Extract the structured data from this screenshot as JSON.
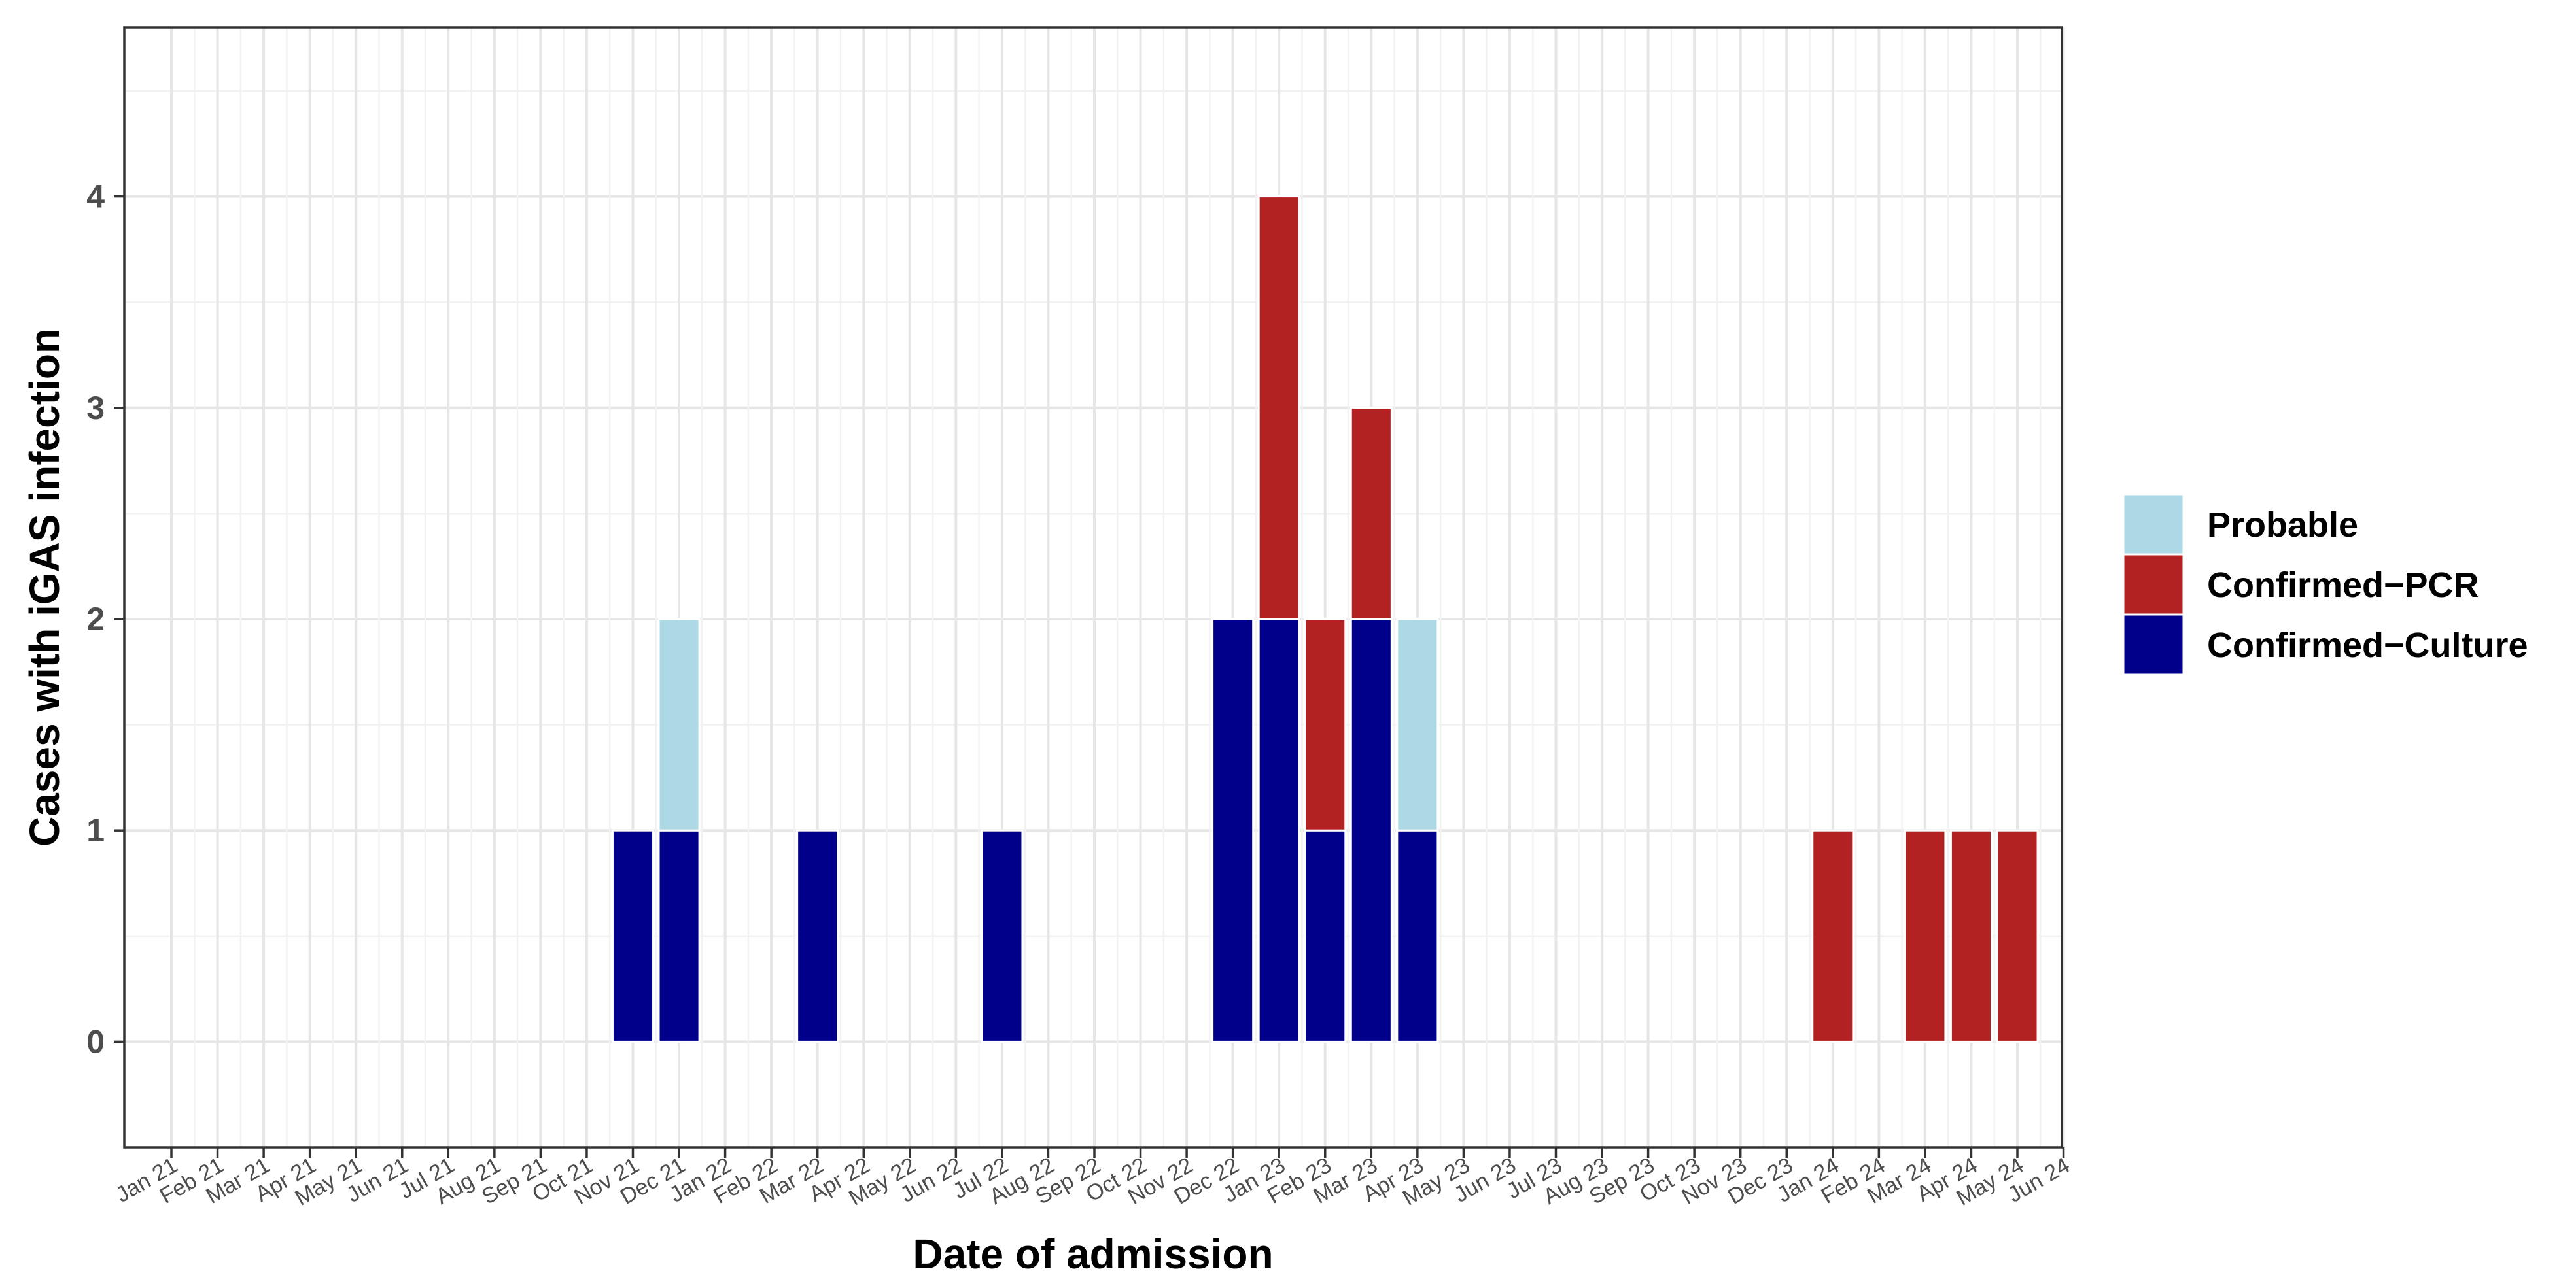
{
  "chart_data": {
    "type": "bar",
    "stacked": true,
    "title": "",
    "xlabel": "Date of admission",
    "ylabel": "Cases with iGAS infection",
    "ylim": [
      -0.5,
      4.8
    ],
    "yticks": [
      0,
      1,
      2,
      3,
      4
    ],
    "grid": true,
    "legend_position": "right",
    "categories": [
      "Jan 21",
      "Feb 21",
      "Mar 21",
      "Apr 21",
      "May 21",
      "Jun 21",
      "Jul 21",
      "Aug 21",
      "Sep 21",
      "Oct 21",
      "Nov 21",
      "Dec 21",
      "Jan 22",
      "Feb 22",
      "Mar 22",
      "Apr 22",
      "May 22",
      "Jun 22",
      "Jul 22",
      "Aug 22",
      "Sep 22",
      "Oct 22",
      "Nov 22",
      "Dec 22",
      "Jan 23",
      "Feb 23",
      "Mar 23",
      "Apr 23",
      "May 23",
      "Jun 23",
      "Jul 23",
      "Aug 23",
      "Sep 23",
      "Oct 23",
      "Nov 23",
      "Dec 23",
      "Jan 24",
      "Feb 24",
      "Mar 24",
      "Apr 24",
      "May 24",
      "Jun 24"
    ],
    "legend_order": [
      "Probable",
      "Confirmed−PCR",
      "Confirmed−Culture"
    ],
    "series": [
      {
        "name": "Confirmed−Culture",
        "color": "#00008B",
        "values": [
          0,
          0,
          0,
          0,
          0,
          0,
          0,
          0,
          0,
          0,
          1,
          1,
          0,
          0,
          1,
          0,
          0,
          0,
          1,
          0,
          0,
          0,
          0,
          2,
          2,
          1,
          2,
          1,
          0,
          0,
          0,
          0,
          0,
          0,
          0,
          0,
          0,
          0,
          0,
          0,
          0,
          0
        ]
      },
      {
        "name": "Confirmed−PCR",
        "color": "#B22222",
        "values": [
          0,
          0,
          0,
          0,
          0,
          0,
          0,
          0,
          0,
          0,
          0,
          0,
          0,
          0,
          0,
          0,
          0,
          0,
          0,
          0,
          0,
          0,
          0,
          0,
          2,
          1,
          1,
          0,
          0,
          0,
          0,
          0,
          0,
          0,
          0,
          0,
          1,
          0,
          1,
          1,
          1,
          0
        ]
      },
      {
        "name": "Probable",
        "color": "#ADD8E6",
        "values": [
          0,
          0,
          0,
          0,
          0,
          0,
          0,
          0,
          0,
          0,
          0,
          1,
          0,
          0,
          0,
          0,
          0,
          0,
          0,
          0,
          0,
          0,
          0,
          0,
          0,
          0,
          0,
          1,
          0,
          0,
          0,
          0,
          0,
          0,
          0,
          0,
          0,
          0,
          0,
          0,
          0,
          0
        ]
      }
    ]
  }
}
